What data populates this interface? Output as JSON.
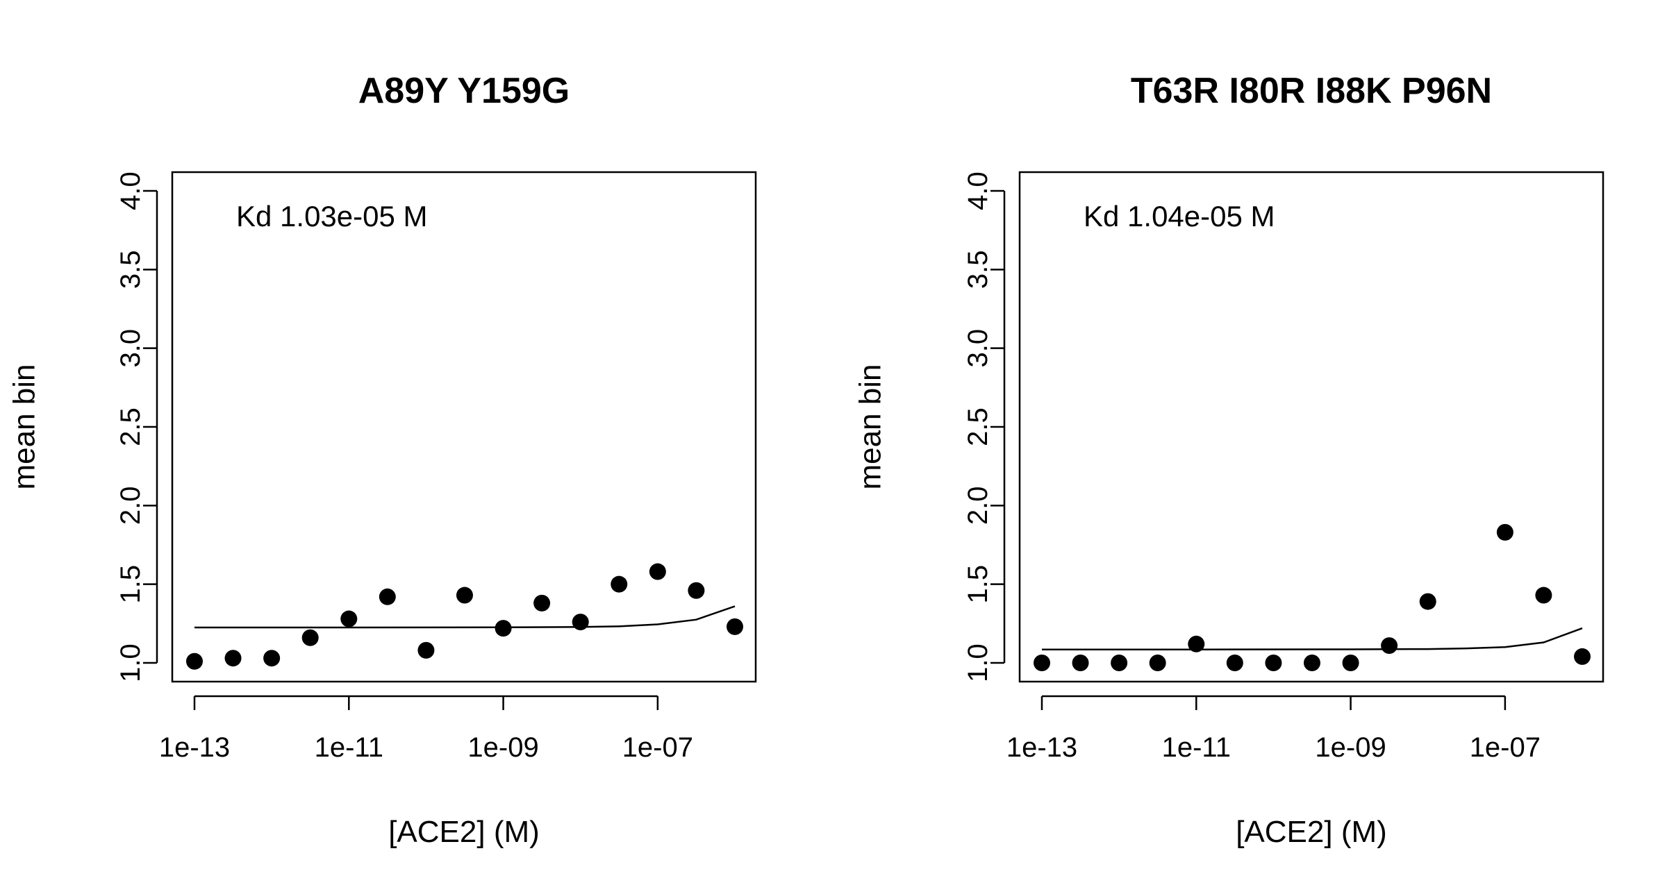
{
  "chart_data": [
    {
      "type": "scatter",
      "title": "A89Y Y159G",
      "xlabel": "[ACE2] (M)",
      "ylabel": "mean bin",
      "x_scale": "log10",
      "xlim": [
        1e-13,
        1e-06
      ],
      "ylim": [
        1.0,
        4.0
      ],
      "x_ticks": [
        1e-13,
        1e-11,
        1e-09,
        1e-07
      ],
      "x_tick_labels": [
        "1e-13",
        "1e-11",
        "1e-09",
        "1e-07"
      ],
      "y_ticks": [
        1.0,
        1.5,
        2.0,
        2.5,
        3.0,
        3.5,
        4.0
      ],
      "y_tick_labels": [
        "1.0",
        "1.5",
        "2.0",
        "2.5",
        "3.0",
        "3.5",
        "4.0"
      ],
      "annotation": "Kd 1.03e-05 M",
      "points": {
        "x": [
          1e-13,
          3.16e-13,
          1e-12,
          3.16e-12,
          1e-11,
          3.16e-11,
          1e-10,
          3.16e-10,
          1e-09,
          3.16e-09,
          1e-08,
          3.16e-08,
          1e-07,
          3.16e-07,
          1e-06
        ],
        "y": [
          1.01,
          1.03,
          1.03,
          1.16,
          1.28,
          1.42,
          1.08,
          1.43,
          1.22,
          1.38,
          1.26,
          1.5,
          1.58,
          1.46,
          1.23
        ]
      },
      "fit": {
        "x": [
          1e-13,
          1e-11,
          1e-09,
          1e-08,
          3.16e-08,
          1e-07,
          3.16e-07,
          1e-06
        ],
        "y": [
          1.225,
          1.225,
          1.226,
          1.228,
          1.232,
          1.245,
          1.275,
          1.36
        ]
      }
    },
    {
      "type": "scatter",
      "title": "T63R I80R I88K P96N",
      "xlabel": "[ACE2] (M)",
      "ylabel": "mean bin",
      "x_scale": "log10",
      "xlim": [
        1e-13,
        1e-06
      ],
      "ylim": [
        1.0,
        4.0
      ],
      "x_ticks": [
        1e-13,
        1e-11,
        1e-09,
        1e-07
      ],
      "x_tick_labels": [
        "1e-13",
        "1e-11",
        "1e-09",
        "1e-07"
      ],
      "y_ticks": [
        1.0,
        1.5,
        2.0,
        2.5,
        3.0,
        3.5,
        4.0
      ],
      "y_tick_labels": [
        "1.0",
        "1.5",
        "2.0",
        "2.5",
        "3.0",
        "3.5",
        "4.0"
      ],
      "annotation": "Kd 1.04e-05 M",
      "points": {
        "x": [
          1e-13,
          3.16e-13,
          1e-12,
          3.16e-12,
          1e-11,
          3.16e-11,
          1e-10,
          3.16e-10,
          1e-09,
          3.16e-09,
          1e-08,
          3.16e-08,
          1e-07,
          3.16e-07,
          1e-06
        ],
        "y": [
          1.0,
          1.0,
          1.0,
          1.0,
          1.12,
          1.0,
          1.0,
          1.0,
          1.0,
          1.11,
          1.39,
          null,
          1.83,
          1.43,
          1.04
        ]
      },
      "fit": {
        "x": [
          1e-13,
          1e-11,
          1e-09,
          1e-08,
          3.16e-08,
          1e-07,
          3.16e-07,
          1e-06
        ],
        "y": [
          1.085,
          1.085,
          1.086,
          1.088,
          1.092,
          1.1,
          1.13,
          1.22
        ]
      }
    }
  ]
}
